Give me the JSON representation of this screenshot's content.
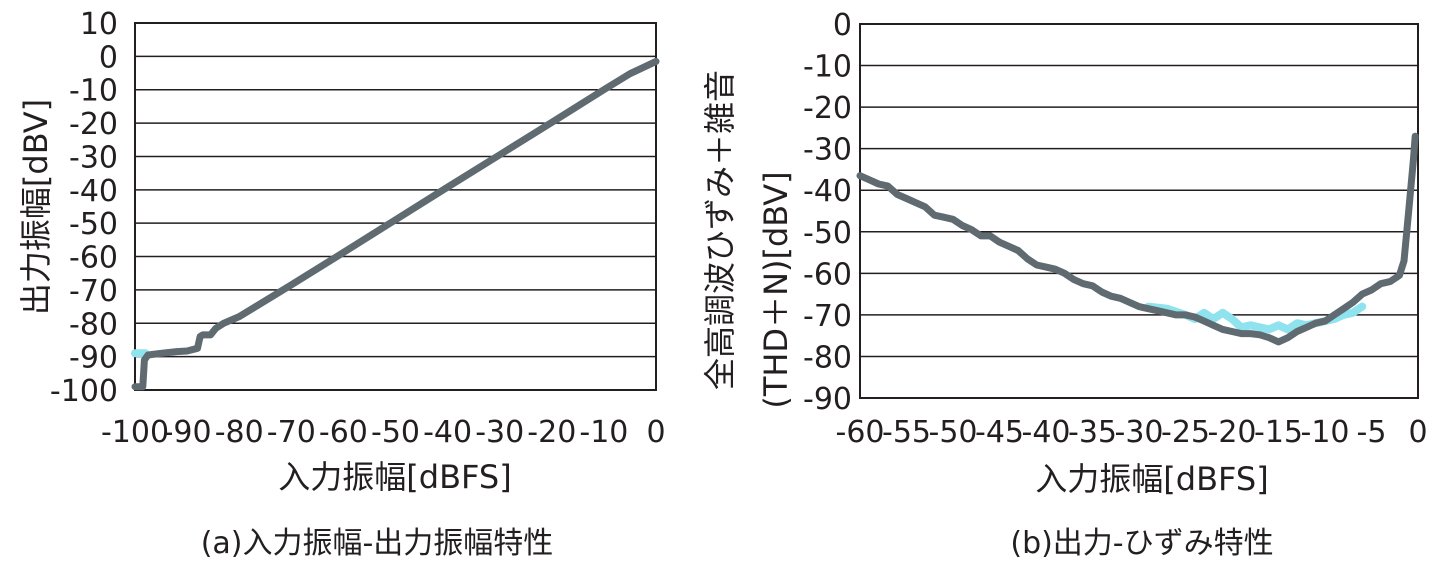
{
  "chart_data": [
    {
      "type": "line",
      "caption": "(a)入力振幅-出力振幅特性",
      "xlabel": "入力振幅[dBFS]",
      "ylabel": "出力振幅[dBV]",
      "xlim": [
        -100,
        0
      ],
      "ylim": [
        -100,
        10
      ],
      "xticks": [
        "-100",
        "-90",
        "-80",
        "-70",
        "-60",
        "-50",
        "-40",
        "-30",
        "-20",
        "-10",
        "0"
      ],
      "yticks": [
        "10",
        "0",
        "-10",
        "-20",
        "-30",
        "-40",
        "-50",
        "-60",
        "-70",
        "-80",
        "-90",
        "-100"
      ],
      "grid": "horizontal",
      "series": [
        {
          "color": "#8fe3ee",
          "x": [
            -100,
            -99,
            -98
          ],
          "y": [
            -89,
            -89,
            -89
          ]
        },
        {
          "color": "#5f6b70",
          "x": [
            -100,
            -99,
            -98.5,
            -98.2,
            -97.5,
            -95,
            -92,
            -90,
            -88,
            -87.5,
            -87,
            -85.5,
            -84.5,
            -83,
            -80,
            -70,
            -60,
            -50,
            -40,
            -30,
            -20,
            -10,
            -5,
            0
          ],
          "y": [
            -99,
            -99,
            -99,
            -91,
            -89.5,
            -89,
            -88.5,
            -88.3,
            -87.5,
            -84,
            -83.5,
            -83.5,
            -81.5,
            -80,
            -78,
            -68.5,
            -58.8,
            -49,
            -39.2,
            -29.5,
            -19.8,
            -10,
            -5.2,
            -1.5
          ]
        }
      ]
    },
    {
      "type": "line",
      "caption": "(b)出力-ひずみ特性",
      "xlabel": "入力振幅[dBFS]",
      "ylabel": "全高調波ひずみ＋雑音(THD＋N)[dBV]",
      "ylabel_line1": "全高調波ひずみ＋雑音",
      "ylabel_line2": "(THD＋N)[dBV]",
      "xlim": [
        -60,
        0
      ],
      "ylim": [
        -90,
        0
      ],
      "xticks": [
        "-60",
        "-55",
        "-50",
        "-45",
        "-40",
        "-35",
        "-30",
        "-25",
        "-20",
        "-15",
        "-10",
        "-5",
        "0"
      ],
      "yticks": [
        "0",
        "-10",
        "-20",
        "-30",
        "-40",
        "-50",
        "-60",
        "-70",
        "-80",
        "-90"
      ],
      "grid": "horizontal",
      "series": [
        {
          "color": "#8fe3ee",
          "x": [
            -29,
            -27,
            -25,
            -24,
            -23,
            -22,
            -21,
            -20,
            -19,
            -18,
            -17,
            -16,
            -15,
            -14,
            -13,
            -12,
            -11,
            -10,
            -9,
            -8,
            -7,
            -6
          ],
          "y": [
            -68,
            -68.5,
            -70,
            -71,
            -69.5,
            -71,
            -69.5,
            -71,
            -73,
            -72.5,
            -73,
            -73.5,
            -72.5,
            -73.5,
            -72,
            -72.5,
            -72,
            -71.5,
            -71,
            -70,
            -69.5,
            -68
          ]
        },
        {
          "color": "#5f6b70",
          "x": [
            -60,
            -59,
            -58,
            -57,
            -56,
            -55,
            -54,
            -53,
            -52,
            -51,
            -50,
            -49,
            -48,
            -47,
            -46,
            -45,
            -44,
            -43,
            -42,
            -41,
            -40,
            -39,
            -38,
            -37,
            -36,
            -35,
            -34,
            -33,
            -32,
            -31,
            -30,
            -29,
            -28,
            -27,
            -26,
            -25,
            -24,
            -23,
            -22,
            -21,
            -20,
            -19,
            -18,
            -17,
            -16,
            -15,
            -14,
            -13,
            -12,
            -11,
            -10,
            -9,
            -8,
            -7,
            -6,
            -5,
            -4,
            -3,
            -2,
            -1.5,
            -1,
            -0.8,
            -0.5,
            -0.3
          ],
          "y": [
            -36.5,
            -37.5,
            -38.5,
            -39,
            -41,
            -42,
            -43,
            -44,
            -46,
            -46.5,
            -47,
            -48.5,
            -49.5,
            -51,
            -51,
            -52.5,
            -53.5,
            -54.5,
            -56.5,
            -58,
            -58.5,
            -59,
            -60,
            -61.5,
            -62.5,
            -63,
            -64.5,
            -65.5,
            -66,
            -67,
            -68,
            -68.5,
            -69,
            -69.5,
            -70,
            -70,
            -70.5,
            -71.5,
            -72.5,
            -73.5,
            -74,
            -74.5,
            -74.5,
            -74.8,
            -75.5,
            -76.5,
            -75.5,
            -74,
            -73,
            -72,
            -71.5,
            -70,
            -68.5,
            -67,
            -65,
            -64,
            -62.5,
            -62,
            -60.5,
            -57,
            -45,
            -40,
            -33,
            -27
          ]
        }
      ]
    }
  ]
}
